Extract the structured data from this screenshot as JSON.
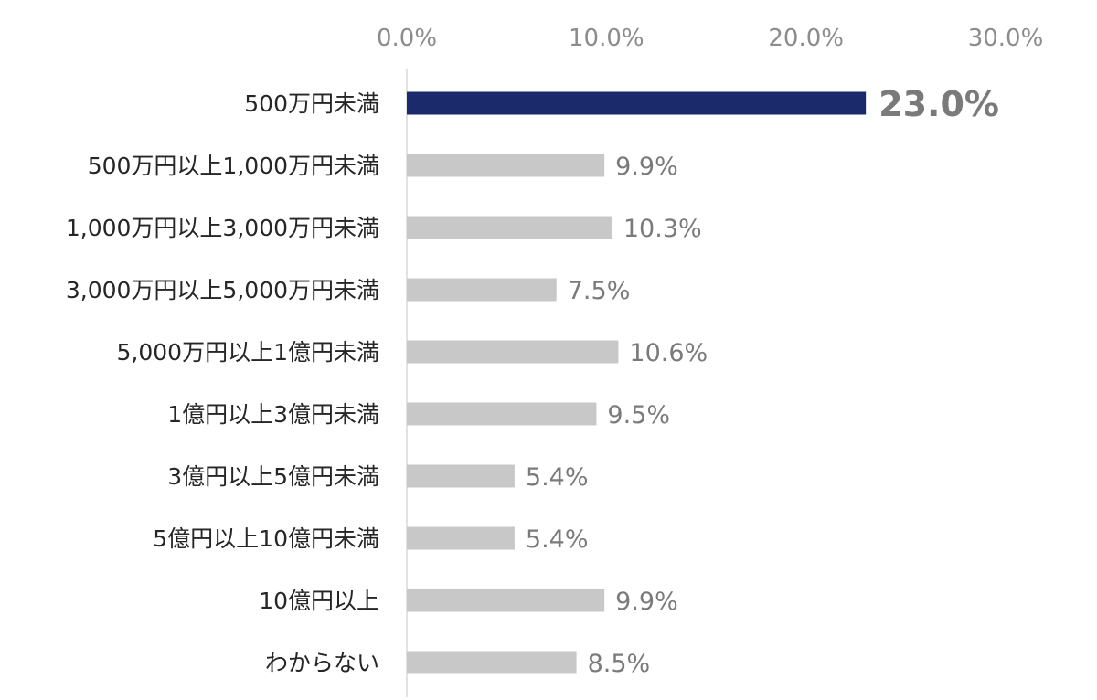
{
  "chart_data": {
    "type": "bar",
    "orientation": "horizontal",
    "title": "",
    "xlabel": "",
    "ylabel": "",
    "xlim": [
      0,
      30
    ],
    "ticks": [
      "0.0%",
      "10.0%",
      "20.0%",
      "30.0%"
    ],
    "tick_values": [
      0,
      10,
      20,
      30
    ],
    "grid": false,
    "categories": [
      "500万円未満",
      "500万円以上1,000万円未満",
      "1,000万円以上3,000万円未満",
      "3,000万円以上5,000万円未満",
      "5,000万円以上1億円未満",
      "1億円以上3億円未満",
      "3億円以上5億円未満",
      "5億円以上10億円未満",
      "10億円以上",
      "わからない"
    ],
    "values": [
      23.0,
      9.9,
      10.3,
      7.5,
      10.6,
      9.5,
      5.4,
      5.4,
      9.9,
      8.5
    ],
    "labels": [
      "23.0%",
      "9.9%",
      "10.3%",
      "7.5%",
      "10.6%",
      "9.5%",
      "5.4%",
      "5.4%",
      "9.9%",
      "8.5%"
    ],
    "highlight_index": 0,
    "colors": {
      "highlight_bar": "#1b2a6b",
      "bar": "#c8c8c8",
      "highlight_label": "#f39a1e",
      "label": "#7a7a7a",
      "axis": "#d9d9d9"
    }
  }
}
